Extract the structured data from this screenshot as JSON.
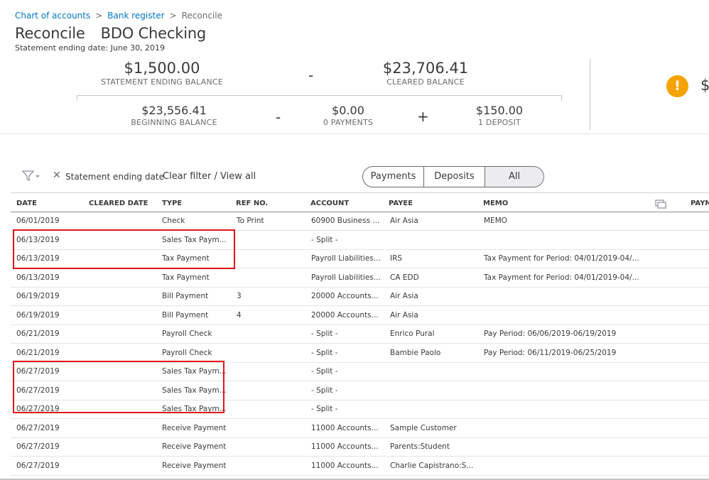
{
  "breadcrumb": {
    "item1": "Chart of accounts",
    "sep": ">",
    "item2": "Bank register",
    "current": "Reconcile"
  },
  "page": {
    "title": "Reconcile",
    "account": "BDO Checking",
    "statement_date_line": "Statement ending date: June 30, 2019"
  },
  "summary": {
    "statement_ending_balance": {
      "value": "$1,500.00",
      "label": "STATEMENT ENDING BALANCE"
    },
    "minus_op": "-",
    "cleared_balance": {
      "value": "$23,706.41",
      "label": "CLEARED BALANCE"
    },
    "beginning_balance": {
      "value": "$23,556.41",
      "label": "BEGINNING BALANCE"
    },
    "minus_op2": "-",
    "payments": {
      "value": "$0.00",
      "label": "0 PAYMENTS"
    },
    "plus_op": "+",
    "deposits": {
      "value": "$150.00",
      "label": "1 DEPOSIT"
    },
    "warning_glyph": "!",
    "warning_partial": "$"
  },
  "filters": {
    "clear_x": "✕",
    "chip": "Statement ending date",
    "clear_link": "Clear filter / View all"
  },
  "segments": [
    "Payments",
    "Deposits",
    "All"
  ],
  "segment_selected": "All",
  "table": {
    "headers": {
      "date": "DATE",
      "cleared": "CLEARED DATE",
      "type": "TYPE",
      "ref": "REF NO.",
      "account": "ACCOUNT",
      "payee": "PAYEE",
      "memo": "MEMO",
      "payment": "PAYM"
    },
    "rows": [
      {
        "date": "06/01/2019",
        "type": "Check",
        "ref": "To Print",
        "account": "60900 Business ...",
        "payee": "Air Asia",
        "memo": "MEMO"
      },
      {
        "date": "06/13/2019",
        "type": "Sales Tax Paym...",
        "ref": "",
        "account": "- Split -",
        "payee": "",
        "memo": ""
      },
      {
        "date": "06/13/2019",
        "type": "Tax Payment",
        "ref": "",
        "account": "Payroll Liabilities...",
        "payee": "IRS",
        "memo": "Tax Payment for Period: 04/01/2019-04/..."
      },
      {
        "date": "06/13/2019",
        "type": "Tax Payment",
        "ref": "",
        "account": "Payroll Liabilities...",
        "payee": "CA EDD",
        "memo": "Tax Payment for Period: 04/01/2019-04/..."
      },
      {
        "date": "06/19/2019",
        "type": "Bill Payment",
        "ref": "3",
        "account": "20000 Accounts...",
        "payee": "Air Asia",
        "memo": ""
      },
      {
        "date": "06/19/2019",
        "type": "Bill Payment",
        "ref": "4",
        "account": "20000 Accounts...",
        "payee": "Air Asia",
        "memo": ""
      },
      {
        "date": "06/21/2019",
        "type": "Payroll Check",
        "ref": "",
        "account": "- Split -",
        "payee": "Enrico Pural",
        "memo": "Pay Period: 06/06/2019-06/19/2019"
      },
      {
        "date": "06/21/2019",
        "type": "Payroll Check",
        "ref": "",
        "account": "- Split -",
        "payee": "Bambie Paolo",
        "memo": "Pay Period: 06/11/2019-06/25/2019"
      },
      {
        "date": "06/27/2019",
        "type": "Sales Tax Paym...",
        "ref": "",
        "account": "- Split -",
        "payee": "",
        "memo": ""
      },
      {
        "date": "06/27/2019",
        "type": "Sales Tax Paym...",
        "ref": "",
        "account": "- Split -",
        "payee": "",
        "memo": ""
      },
      {
        "date": "06/27/2019",
        "type": "Sales Tax Paym...",
        "ref": "",
        "account": "- Split -",
        "payee": "",
        "memo": ""
      },
      {
        "date": "06/27/2019",
        "type": "Receive Payment",
        "ref": "",
        "account": "11000 Accounts...",
        "payee": "Sample Customer",
        "memo": ""
      },
      {
        "date": "06/27/2019",
        "type": "Receive Payment",
        "ref": "",
        "account": "11000 Accounts...",
        "payee": "Parents:Student",
        "memo": ""
      },
      {
        "date": "06/27/2019",
        "type": "Receive Payment",
        "ref": "",
        "account": "11000 Accounts...",
        "payee": "Charlie Capistrano:S...",
        "memo": ""
      }
    ]
  },
  "colors": {
    "link": "#0077c5",
    "warning": "#f5a300",
    "highlight": "#e2141b"
  }
}
